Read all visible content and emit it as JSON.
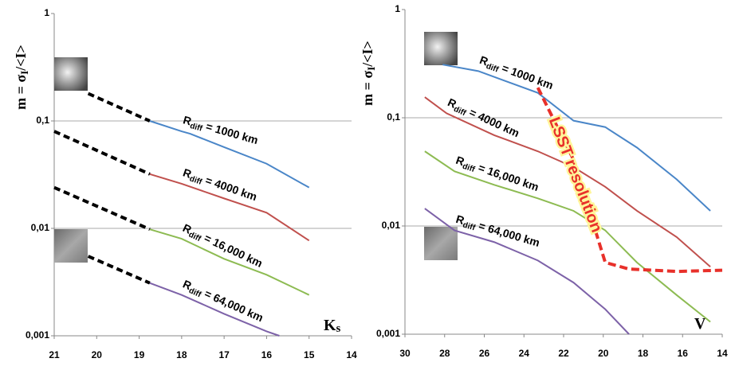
{
  "chart_data": [
    {
      "type": "line",
      "ylabel": "m = σI/<I>",
      "xlabel": "Ks",
      "log_y": true,
      "grid": true,
      "xlim": [
        21,
        14
      ],
      "ylim": [
        0.001,
        1
      ],
      "xticks": [
        21,
        20,
        19,
        18,
        17,
        16,
        15,
        14
      ],
      "yticks": [
        {
          "value": 0.001,
          "label": "0,001"
        },
        {
          "value": 0.01,
          "label": "0,01"
        },
        {
          "value": 0.1,
          "label": "0,1"
        },
        1
      ],
      "series": [
        {
          "name": "Rdiff = 1000 km",
          "color": "#4a86c8",
          "x": [
            18.75,
            18,
            17.8,
            17,
            16,
            15
          ],
          "values": [
            0.1,
            0.08,
            0.076,
            0.057,
            0.04,
            0.024
          ]
        },
        {
          "name": "Rdiff = 4000 km",
          "color": "#c0504d",
          "x": [
            18.75,
            18,
            17,
            16,
            15
          ],
          "values": [
            0.032,
            0.026,
            0.019,
            0.014,
            0.0077
          ]
        },
        {
          "name": "Rdiff = 16,000 km",
          "color": "#8dbb52",
          "x": [
            18.75,
            18,
            17,
            16,
            15
          ],
          "values": [
            0.0098,
            0.008,
            0.0052,
            0.0037,
            0.0024
          ]
        },
        {
          "name": "Rdiff = 64,000 km",
          "color": "#7d62a8",
          "x": [
            18.75,
            18,
            17,
            16,
            15.7
          ],
          "values": [
            0.0031,
            0.0024,
            0.0016,
            0.0011,
            0.001
          ]
        },
        {
          "color": "#000000",
          "dashed": true,
          "x": [
            20.2,
            18.75
          ],
          "values": [
            0.18,
            0.1
          ]
        },
        {
          "color": "#000000",
          "dashed": true,
          "x": [
            21,
            18.75
          ],
          "values": [
            0.08,
            0.032
          ]
        },
        {
          "color": "#000000",
          "dashed": true,
          "x": [
            21,
            18.75
          ],
          "values": [
            0.024,
            0.0098
          ]
        },
        {
          "color": "#000000",
          "dashed": true,
          "x": [
            20.2,
            18.75
          ],
          "values": [
            0.0055,
            0.0031
          ]
        }
      ]
    },
    {
      "type": "line",
      "ylabel": "m = σI/<I>",
      "xlabel": "V",
      "log_y": true,
      "grid": true,
      "xlim": [
        30,
        14
      ],
      "ylim": [
        0.001,
        1
      ],
      "xticks": [
        30,
        28,
        26,
        24,
        22,
        20,
        18,
        16,
        14
      ],
      "yticks": [
        {
          "value": 0.001,
          "label": "0,001"
        },
        {
          "value": 0.01,
          "label": "0,01"
        },
        {
          "value": 0.1,
          "label": "0,1"
        },
        1
      ],
      "series": [
        {
          "name": "Rdiff = 1000 km",
          "color": "#4a86c8",
          "x": [
            28.1,
            26.3,
            23.3,
            21.5,
            19.9,
            18.3,
            16.3,
            14.6
          ],
          "values": [
            0.31,
            0.27,
            0.17,
            0.094,
            0.082,
            0.053,
            0.027,
            0.0138
          ]
        },
        {
          "name": "Rdiff = 4000 km",
          "color": "#c0504d",
          "x": [
            29,
            27.9,
            25.5,
            23.3,
            21.5,
            19.9,
            18.3,
            16.3,
            14.6
          ],
          "values": [
            0.155,
            0.11,
            0.069,
            0.049,
            0.035,
            0.023,
            0.0138,
            0.0079,
            0.0042
          ]
        },
        {
          "name": "Rdiff = 16,000 km",
          "color": "#8dbb52",
          "x": [
            29,
            27.5,
            25.5,
            23.3,
            21.5,
            19.9,
            18.3,
            16.3,
            14.6
          ],
          "values": [
            0.049,
            0.032,
            0.024,
            0.018,
            0.0138,
            0.0091,
            0.0046,
            0.0023,
            0.0013
          ]
        },
        {
          "name": "Rdiff = 64,000 km",
          "color": "#7d62a8",
          "x": [
            29,
            27.5,
            25.5,
            23.3,
            21.5,
            19.9,
            18.7
          ],
          "values": [
            0.0145,
            0.0091,
            0.0071,
            0.0048,
            0.003,
            0.0017,
            0.001
          ]
        },
        {
          "name": "LSST resolution",
          "color": "#e8302a",
          "dashed": true,
          "x": [
            23.3,
            21.5,
            19.9,
            18.7,
            16.3,
            14
          ],
          "values": [
            0.19,
            0.041,
            0.0046,
            0.004,
            0.0038,
            0.0039
          ]
        }
      ]
    }
  ]
}
